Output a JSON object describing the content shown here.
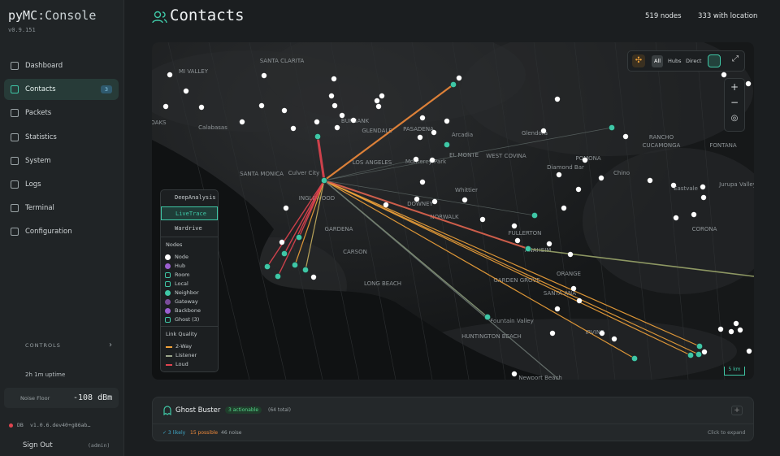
{
  "sidebar": {
    "brand_prefix": "pyMC",
    "brand_suffix": ":Console",
    "version": "v0.9.151",
    "nav": [
      {
        "label": "Dashboard"
      },
      {
        "label": "Contacts",
        "badge": "3"
      },
      {
        "label": "Packets"
      },
      {
        "label": "Statistics"
      },
      {
        "label": "System"
      },
      {
        "label": "Logs"
      },
      {
        "label": "Terminal"
      },
      {
        "label": "Configuration"
      }
    ],
    "controls": "CONTROLS",
    "uptime": "2h 1m uptime",
    "noise_floor_label": "Noise Floor",
    "noise_floor_value": "-108 dBm",
    "db_label": "DB",
    "db_version": "v1.0.6.dev40+g86ab…",
    "sign_out": "Sign Out",
    "user": "(admin)"
  },
  "header": {
    "title": "Contacts",
    "nodes": "519 nodes",
    "located": "333 with location"
  },
  "map": {
    "filters": [
      "All",
      "Hubs",
      "Direct"
    ],
    "modes": [
      "DeepAnalysis",
      "LiveTrace",
      "Wardrive"
    ],
    "nodes_title": "Nodes",
    "node_types": [
      "Node",
      "Hub",
      "Room",
      "Local",
      "Neighbor",
      "Gateway",
      "Backbone",
      "Ghost (3)"
    ],
    "link_title": "Link Quality",
    "link_types": [
      "2-Way",
      "Listener",
      "Loud"
    ],
    "places": [
      "SANTA CLARITA",
      "MI VALLEY",
      "OAKS",
      "Calabasas",
      "BURBANK",
      "GLENDALE",
      "PASADENA",
      "Arcadia",
      "Glendora",
      "LOS ANGELES",
      "Monterey Park",
      "EL MONTE",
      "WEST COVINA",
      "SANTA MONICA",
      "Culver City",
      "INGLEWOOD",
      "Whittier",
      "DOWNEY",
      "NORWALK",
      "GARDENA",
      "CARSON",
      "FULLERTON",
      "ANAHEIM",
      "ORANGE",
      "GARDEN GROVE",
      "SANTA ANA",
      "LONG BEACH",
      "HUNTINGTON BEACH",
      "Fountain Valley",
      "IRVINE",
      "Newport Beach",
      "RANCHO",
      "CUCAMONGA",
      "FONTANA",
      "POMONA",
      "Diamond Bar",
      "Chino",
      "Eastvale",
      "CORONA",
      "Jurupa Valley"
    ],
    "scale": "5 km"
  },
  "ghost": {
    "title": "Ghost Buster",
    "actionable": "3 actionable",
    "total": "(64 total)",
    "likely": "✓ 3 likely",
    "possible": "15 possible",
    "noise": "46 noise",
    "expand": "Click to expand"
  }
}
